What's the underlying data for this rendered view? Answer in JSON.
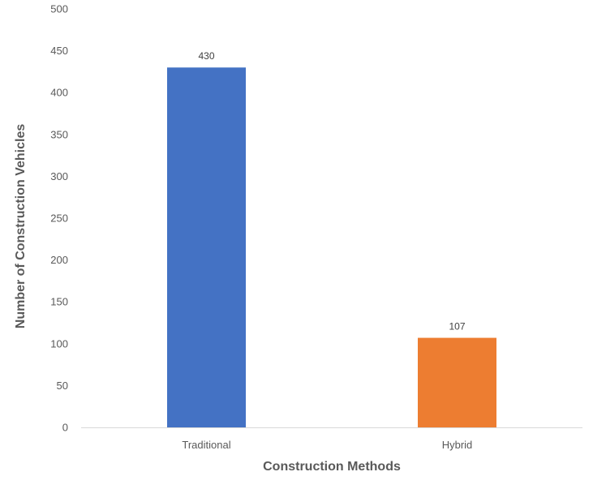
{
  "chart_data": {
    "type": "bar",
    "title": "",
    "xlabel": "Construction Methods",
    "ylabel": "Number of Construction Vehicles",
    "categories": [
      "Traditional",
      "Hybrid"
    ],
    "values": [
      430,
      107
    ],
    "colors": [
      "#4472C4",
      "#ED7D31"
    ],
    "data_labels": [
      "430",
      "107"
    ],
    "ylim": [
      0,
      500
    ],
    "yticks": [
      0,
      50,
      100,
      150,
      200,
      250,
      300,
      350,
      400,
      450,
      500
    ],
    "grid": false,
    "legend": "none"
  }
}
